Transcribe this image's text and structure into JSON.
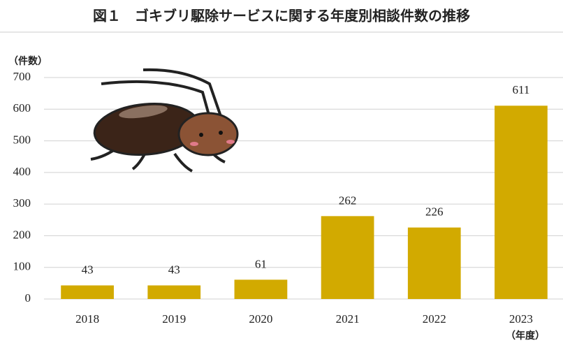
{
  "chart_data": {
    "type": "bar",
    "title": "図１　ゴキブリ駆除サービスに関する年度別相談件数の推移",
    "y_label": "（件数）",
    "x_label": "（年度）",
    "categories": [
      "2018",
      "2019",
      "2020",
      "2021",
      "2022",
      "2023"
    ],
    "values": [
      43,
      43,
      61,
      262,
      226,
      611
    ],
    "color": "#d2aa00",
    "ylim": [
      0,
      700
    ],
    "yticks": [
      0,
      100,
      200,
      300,
      400,
      500,
      600,
      700
    ],
    "grid": true
  }
}
